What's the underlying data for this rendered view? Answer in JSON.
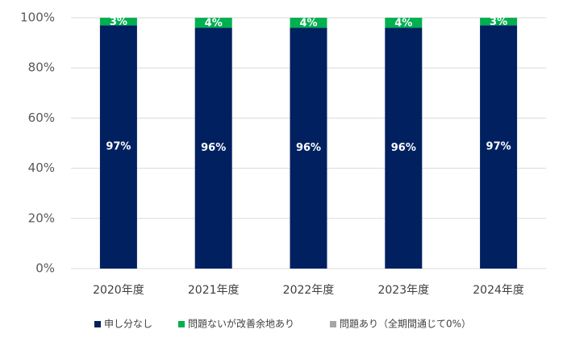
{
  "chart_data": {
    "type": "stacked-bar",
    "categories": [
      "2020年度",
      "2021年度",
      "2022年度",
      "2023年度",
      "2024年度"
    ],
    "series": [
      {
        "name": "申し分なし",
        "color": "#002060",
        "values": [
          97,
          96,
          96,
          96,
          97
        ],
        "value_labels": [
          "97%",
          "96%",
          "96%",
          "96%",
          "97%"
        ]
      },
      {
        "name": "問題ないが改善余地あり",
        "color": "#00b050",
        "values": [
          3,
          4,
          4,
          4,
          3
        ],
        "value_labels": [
          "3%",
          "4%",
          "4%",
          "4%",
          "3%"
        ]
      },
      {
        "name": "問題あり（全期間通じて0%）",
        "color": "#a6a6a6",
        "values": [
          0,
          0,
          0,
          0,
          0
        ]
      }
    ],
    "ylim": [
      0,
      100
    ],
    "yticks": [
      {
        "value": 0,
        "label": "0%"
      },
      {
        "value": 20,
        "label": "20%"
      },
      {
        "value": 40,
        "label": "40%"
      },
      {
        "value": 60,
        "label": "60%"
      },
      {
        "value": 80,
        "label": "80%"
      },
      {
        "value": 100,
        "label": "100%"
      }
    ],
    "grid": true,
    "legend": "bottom"
  }
}
